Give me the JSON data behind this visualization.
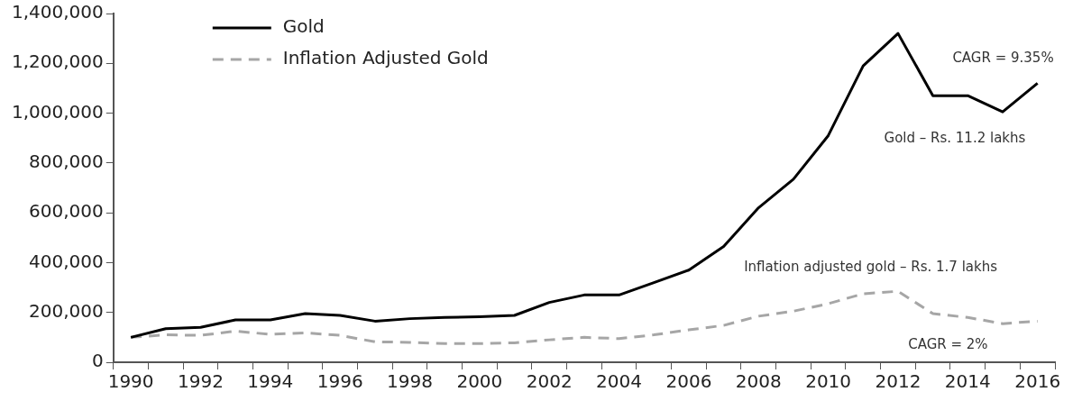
{
  "chart_data": {
    "type": "line",
    "categories": [
      "1990",
      null,
      "1992",
      null,
      "1994",
      null,
      "1996",
      null,
      "1998",
      null,
      "2000",
      null,
      "2002",
      null,
      "2004",
      null,
      "2006",
      null,
      "2008",
      null,
      "2010",
      null,
      "2012",
      null,
      "2014",
      null,
      "2016"
    ],
    "series": [
      {
        "name": "Gold",
        "color": "#000000",
        "line_style": "solid",
        "values": [
          100000,
          135000,
          140000,
          170000,
          170000,
          195000,
          188000,
          165000,
          175000,
          180000,
          183000,
          188000,
          240000,
          270000,
          270000,
          320000,
          370000,
          465000,
          620000,
          735000,
          910000,
          1190000,
          1320000,
          1070000,
          1070000,
          1005000,
          1120000
        ]
      },
      {
        "name": "Inflation Adjusted Gold",
        "color": "#a6a6a6",
        "line_style": "dashed",
        "values": [
          100000,
          110000,
          108000,
          125000,
          112000,
          118000,
          108000,
          82000,
          80000,
          75000,
          75000,
          78000,
          90000,
          100000,
          95000,
          110000,
          130000,
          148000,
          185000,
          205000,
          235000,
          275000,
          285000,
          195000,
          180000,
          155000,
          165000
        ]
      }
    ],
    "ylim": [
      0,
      1400000
    ],
    "yticks": [
      0,
      {
        "value": 200000,
        "label": "200,000"
      },
      {
        "value": 400000,
        "label": "400,000"
      },
      {
        "value": 600000,
        "label": "600,000"
      },
      {
        "value": 800000,
        "label": "800,000"
      },
      {
        "value": 1000000,
        "label": "1,000,000"
      },
      {
        "value": 1200000,
        "label": "1,200,000"
      },
      {
        "value": 1400000,
        "label": "1,400,000"
      }
    ],
    "grid": false,
    "legend": "top left",
    "marker": "none",
    "annotations": [
      "CAGR = 9.35%",
      "Gold – Rs. 11.2 lakhs",
      "Inflation adjusted gold – Rs. 1.7 lakhs",
      "CAGR = 2%"
    ]
  }
}
